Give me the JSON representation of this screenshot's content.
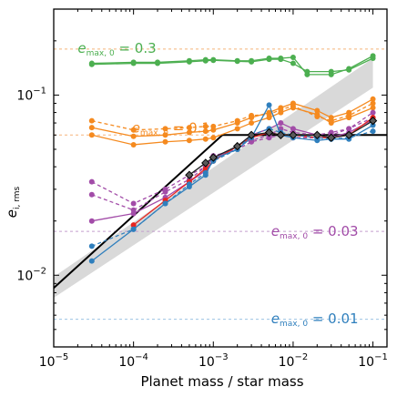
{
  "chart_data": {
    "type": "line",
    "title": "",
    "xlabel": "Planet mass / star mass",
    "ylabel_main": "e",
    "ylabel_sub": "i, rms",
    "xscale": "log",
    "yscale": "log",
    "xlim": [
      1e-05,
      0.15
    ],
    "ylim": [
      0.004,
      0.3
    ],
    "xticks": [
      {
        "value": 1e-05,
        "base": "10",
        "exp": "−5"
      },
      {
        "value": 0.0001,
        "base": "10",
        "exp": "−4"
      },
      {
        "value": 0.001,
        "base": "10",
        "exp": "−3"
      },
      {
        "value": 0.01,
        "base": "10",
        "exp": "−2"
      },
      {
        "value": 0.1,
        "base": "10",
        "exp": "−1"
      }
    ],
    "yticks": [
      {
        "value": 0.01,
        "base": "10",
        "exp": "−2"
      },
      {
        "value": 0.1,
        "base": "10",
        "exp": "−1"
      }
    ],
    "band": {
      "color": "#d9d9d9",
      "x": [
        1e-05,
        0.1
      ],
      "lower": [
        0.0075,
        0.11
      ],
      "upper": [
        0.0098,
        0.16
      ]
    },
    "theory_line": {
      "color": "#000000",
      "x": [
        1e-05,
        0.0013,
        0.15
      ],
      "y": [
        0.0085,
        0.06,
        0.06
      ]
    },
    "reference_lines": [
      {
        "y": 0.18,
        "color": "#f5b47a",
        "base": "e",
        "sub": "max, 0",
        "text": " = 0.3",
        "label_color": "#4caf50",
        "label_x": 2e-05,
        "label_y": 0.172
      },
      {
        "y": 0.06,
        "color": "#f5b47a",
        "base": "e",
        "sub": "max, 0",
        "text": " = 0.1",
        "label_color": "#f58a1f",
        "label_x": 9.5e-05,
        "label_y": 0.062
      },
      {
        "y": 0.0175,
        "color": "#c39fce",
        "base": "e",
        "sub": "max, 0",
        "text": " = 0.03",
        "label_color": "#a24ca8",
        "label_x": 0.0053,
        "label_y": 0.0165
      },
      {
        "y": 0.0057,
        "color": "#9cc2e2",
        "base": "e",
        "sub": "max, 0",
        "text": " = 0.01",
        "label_color": "#2f7fbd",
        "label_x": 0.0053,
        "label_y": 0.0054
      }
    ],
    "series": [
      {
        "color": "#4caf50",
        "marker": "circle",
        "dash": "",
        "x": [
          3e-05,
          0.0001,
          0.0002,
          0.0005,
          0.0008,
          0.001,
          0.002,
          0.003,
          0.005,
          0.007,
          0.01,
          0.015,
          0.03,
          0.05,
          0.1
        ],
        "y": [
          0.15,
          0.152,
          0.152,
          0.155,
          0.157,
          0.157,
          0.155,
          0.155,
          0.16,
          0.16,
          0.162,
          0.13,
          0.13,
          0.14,
          0.165
        ]
      },
      {
        "color": "#4caf50",
        "marker": "circle",
        "dash": "",
        "x": [
          3e-05,
          0.0001,
          0.0002,
          0.0005,
          0.0008,
          0.001,
          0.002,
          0.003,
          0.005,
          0.007,
          0.01,
          0.015,
          0.03,
          0.05,
          0.1
        ],
        "y": [
          0.148,
          0.15,
          0.15,
          0.153,
          0.155,
          0.156,
          0.154,
          0.153,
          0.158,
          0.158,
          0.15,
          0.135,
          0.135,
          0.138,
          0.16
        ]
      },
      {
        "color": "#f58a1f",
        "marker": "circle",
        "dash": "",
        "x": [
          3e-05,
          0.0001,
          0.00025,
          0.0005,
          0.0008,
          0.001,
          0.002,
          0.003,
          0.005,
          0.007,
          0.01,
          0.02,
          0.03,
          0.05,
          0.1
        ],
        "y": [
          0.06,
          0.053,
          0.055,
          0.056,
          0.057,
          0.058,
          0.065,
          0.07,
          0.075,
          0.08,
          0.085,
          0.078,
          0.07,
          0.075,
          0.085
        ]
      },
      {
        "color": "#f58a1f",
        "marker": "circle",
        "dash": "",
        "x": [
          3e-05,
          0.0001,
          0.00025,
          0.0005,
          0.0008,
          0.001,
          0.002,
          0.003,
          0.005,
          0.007,
          0.01,
          0.02,
          0.03,
          0.05,
          0.1
        ],
        "y": [
          0.066,
          0.059,
          0.06,
          0.062,
          0.063,
          0.064,
          0.07,
          0.075,
          0.08,
          0.085,
          0.09,
          0.082,
          0.075,
          0.08,
          0.095
        ]
      },
      {
        "color": "#f58a1f",
        "marker": "circle",
        "dash": "4,3",
        "x": [
          3e-05,
          0.0001,
          0.00025,
          0.0005,
          0.0008,
          0.001,
          0.002,
          0.003,
          0.005,
          0.007,
          0.01,
          0.02,
          0.03,
          0.05,
          0.1
        ],
        "y": [
          0.072,
          0.064,
          0.065,
          0.066,
          0.067,
          0.067,
          0.072,
          0.077,
          0.078,
          0.083,
          0.087,
          0.076,
          0.072,
          0.077,
          0.09
        ]
      },
      {
        "color": "#a24ca8",
        "marker": "circle",
        "dash": "4,3",
        "x": [
          3e-05,
          0.0001,
          0.00025,
          0.0005,
          0.0008,
          0.001,
          0.002,
          0.003,
          0.005,
          0.007,
          0.01,
          0.02,
          0.03,
          0.05,
          0.1
        ],
        "y": [
          0.033,
          0.025,
          0.03,
          0.036,
          0.04,
          0.045,
          0.052,
          0.056,
          0.06,
          0.065,
          0.062,
          0.06,
          0.062,
          0.065,
          0.08
        ]
      },
      {
        "color": "#a24ca8",
        "marker": "circle",
        "dash": "4,3",
        "x": [
          3e-05,
          0.0001,
          0.00025,
          0.0005,
          0.0008,
          0.001,
          0.002,
          0.003,
          0.005,
          0.007,
          0.01,
          0.02,
          0.03,
          0.05,
          0.1
        ],
        "y": [
          0.028,
          0.023,
          0.029,
          0.034,
          0.04,
          0.046,
          0.05,
          0.055,
          0.058,
          0.06,
          0.058,
          0.058,
          0.06,
          0.065,
          0.075
        ]
      },
      {
        "color": "#a24ca8",
        "marker": "circle",
        "dash": "",
        "x": [
          3e-05,
          0.0001,
          0.00025,
          0.0005,
          0.0008,
          0.001,
          0.002,
          0.003,
          0.005,
          0.007,
          0.01,
          0.02,
          0.03,
          0.05,
          0.1
        ],
        "y": [
          0.02,
          0.022,
          0.027,
          0.033,
          0.038,
          0.044,
          0.052,
          0.06,
          0.065,
          0.07,
          0.065,
          0.06,
          0.058,
          0.062,
          0.073
        ]
      },
      {
        "color": "#e8251f",
        "marker": "circle",
        "dash": "",
        "x": [
          0.0001,
          0.00025,
          0.0005,
          0.0008,
          0.001,
          0.002,
          0.003,
          0.005,
          0.007,
          0.01,
          0.02,
          0.03,
          0.05,
          0.1
        ],
        "y": [
          0.019,
          0.026,
          0.033,
          0.039,
          0.043,
          0.052,
          0.058,
          0.062,
          0.06,
          0.06,
          0.058,
          0.058,
          0.06,
          0.075
        ]
      },
      {
        "color": "#2f7fbd",
        "marker": "circle",
        "dash": "4,3",
        "x": [
          3e-05,
          0.0001,
          0.00025,
          0.0005,
          0.0008,
          0.001,
          0.002,
          0.003,
          0.005,
          0.007,
          0.01,
          0.02,
          0.03,
          0.05,
          0.1
        ],
        "y": [
          0.0145,
          0.018,
          0.025,
          0.032,
          0.037,
          0.043,
          0.05,
          0.06,
          0.065,
          0.062,
          0.06,
          0.058,
          0.057,
          0.058,
          0.063
        ]
      },
      {
        "color": "#2f7fbd",
        "marker": "circle",
        "dash": "",
        "x": [
          3e-05,
          0.0001,
          0.00025,
          0.0005,
          0.0008,
          0.001,
          0.002,
          0.003,
          0.005,
          0.007,
          0.01,
          0.02,
          0.03,
          0.05,
          0.1
        ],
        "y": [
          0.012,
          0.018,
          0.025,
          0.031,
          0.036,
          0.044,
          0.05,
          0.058,
          0.088,
          0.06,
          0.058,
          0.056,
          0.057,
          0.057,
          0.068
        ]
      },
      {
        "color": "#222222",
        "marker": "diamond",
        "dash": "",
        "x": [
          0.0005,
          0.0008,
          0.001,
          0.002,
          0.003,
          0.005,
          0.007,
          0.01,
          0.02,
          0.03,
          0.05,
          0.1
        ],
        "y": [
          0.036,
          0.042,
          0.045,
          0.052,
          0.06,
          0.062,
          0.06,
          0.06,
          0.06,
          0.058,
          0.06,
          0.072
        ]
      }
    ]
  }
}
